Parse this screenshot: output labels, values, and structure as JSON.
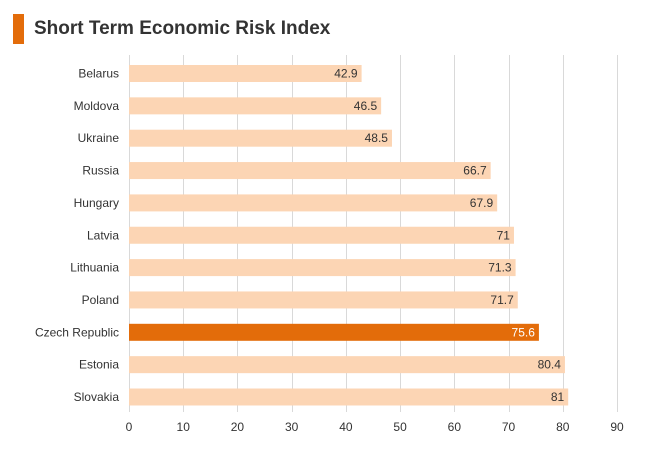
{
  "title": "Short Term Economic Risk Index",
  "colors": {
    "accent": "#e36c0a",
    "bar": "#fcd5b4",
    "highlight": "#e36c0a",
    "grid": "#d9d9d9",
    "label_dark": "#333333",
    "label_light": "#ffffff"
  },
  "chart_data": {
    "type": "bar",
    "orientation": "horizontal",
    "title": "Short Term Economic Risk Index",
    "categories": [
      "Belarus",
      "Moldova",
      "Ukraine",
      "Russia",
      "Hungary",
      "Latvia",
      "Lithuania",
      "Poland",
      "Czech Republic",
      "Estonia",
      "Slovakia"
    ],
    "values": [
      42.9,
      46.5,
      48.5,
      66.7,
      67.9,
      71,
      71.3,
      71.7,
      75.6,
      80.4,
      81
    ],
    "data_labels": [
      "42.9",
      "46.5",
      "48.5",
      "66.7",
      "67.9",
      "71",
      "71.3",
      "71.7",
      "75.6",
      "80.4",
      "81"
    ],
    "highlighted_category": "Czech Republic",
    "xlim": [
      0,
      90
    ],
    "xticks": [
      0,
      10,
      20,
      30,
      40,
      50,
      60,
      70,
      80,
      90
    ],
    "grid": "vertical",
    "legend": "none"
  }
}
